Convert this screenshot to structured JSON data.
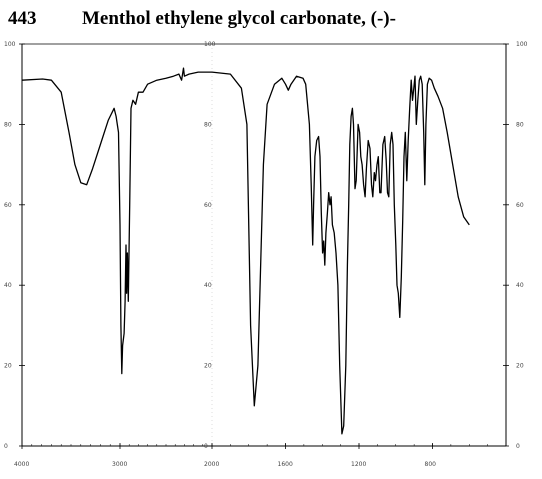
{
  "header": {
    "number": "443",
    "title": "Menthol ethylene glycol carbonate, (-)-"
  },
  "chart_data": {
    "type": "line",
    "title": "Menthol ethylene glycol carbonate, (-)-",
    "xlabel": "",
    "ylabel": "",
    "xlim": [
      4000,
      400
    ],
    "ylim": [
      0,
      100
    ],
    "x_ticks": [
      "4000",
      "3000",
      "2000",
      "1600",
      "1200",
      "800"
    ],
    "y_ticks_left": [
      "100",
      "80",
      "60",
      "40",
      "20",
      "0"
    ],
    "y_ticks_right": [
      "100",
      "80",
      "60",
      "40",
      "20",
      "0"
    ],
    "y_ticks_mid": [
      "100",
      "80",
      "60",
      "40",
      "20",
      "0"
    ],
    "grid": false,
    "series": [
      {
        "name": "",
        "points": [
          [
            4000,
            91
          ],
          [
            3790,
            91.3
          ],
          [
            3700,
            91
          ],
          [
            3600,
            88
          ],
          [
            3520,
            78
          ],
          [
            3460,
            70
          ],
          [
            3400,
            65.5
          ],
          [
            3340,
            65
          ],
          [
            3280,
            69
          ],
          [
            3200,
            75
          ],
          [
            3120,
            81
          ],
          [
            3060,
            84
          ],
          [
            3040,
            82
          ],
          [
            3015,
            78
          ],
          [
            3000,
            55
          ],
          [
            2990,
            30
          ],
          [
            2980,
            18
          ],
          [
            2972,
            25
          ],
          [
            2955,
            28
          ],
          [
            2945,
            36
          ],
          [
            2935,
            50
          ],
          [
            2928,
            38
          ],
          [
            2920,
            48
          ],
          [
            2910,
            36
          ],
          [
            2895,
            60
          ],
          [
            2880,
            84
          ],
          [
            2860,
            86
          ],
          [
            2830,
            85
          ],
          [
            2800,
            88
          ],
          [
            2750,
            88
          ],
          [
            2700,
            90
          ],
          [
            2600,
            91
          ],
          [
            2500,
            91.5
          ],
          [
            2420,
            92
          ],
          [
            2360,
            92.5
          ],
          [
            2330,
            91
          ],
          [
            2310,
            94
          ],
          [
            2300,
            92
          ],
          [
            2250,
            92.5
          ],
          [
            2150,
            93
          ],
          [
            2050,
            93
          ],
          [
            2000,
            93
          ],
          [
            1900,
            92.5
          ],
          [
            1840,
            89
          ],
          [
            1810,
            80
          ],
          [
            1790,
            30
          ],
          [
            1770,
            10
          ],
          [
            1750,
            20
          ],
          [
            1720,
            70
          ],
          [
            1700,
            85
          ],
          [
            1660,
            90
          ],
          [
            1620,
            91.5
          ],
          [
            1600,
            90
          ],
          [
            1585,
            88.5
          ],
          [
            1570,
            90
          ],
          [
            1540,
            92
          ],
          [
            1505,
            91.5
          ],
          [
            1490,
            90
          ],
          [
            1470,
            80
          ],
          [
            1460,
            65
          ],
          [
            1452,
            50
          ],
          [
            1447,
            60
          ],
          [
            1440,
            72
          ],
          [
            1430,
            76
          ],
          [
            1420,
            77
          ],
          [
            1412,
            72
          ],
          [
            1405,
            58
          ],
          [
            1398,
            48
          ],
          [
            1392,
            51
          ],
          [
            1386,
            45
          ],
          [
            1380,
            53
          ],
          [
            1372,
            58
          ],
          [
            1365,
            63
          ],
          [
            1358,
            60
          ],
          [
            1352,
            62
          ],
          [
            1345,
            55
          ],
          [
            1335,
            53
          ],
          [
            1325,
            48
          ],
          [
            1315,
            40
          ],
          [
            1305,
            20
          ],
          [
            1293,
            3
          ],
          [
            1283,
            5
          ],
          [
            1272,
            20
          ],
          [
            1263,
            45
          ],
          [
            1256,
            60
          ],
          [
            1250,
            75
          ],
          [
            1243,
            82
          ],
          [
            1236,
            84
          ],
          [
            1230,
            80
          ],
          [
            1222,
            64
          ],
          [
            1215,
            66
          ],
          [
            1205,
            80
          ],
          [
            1197,
            78
          ],
          [
            1190,
            72
          ],
          [
            1183,
            70
          ],
          [
            1175,
            65
          ],
          [
            1167,
            62
          ],
          [
            1160,
            69
          ],
          [
            1150,
            76
          ],
          [
            1140,
            74
          ],
          [
            1132,
            65
          ],
          [
            1125,
            62
          ],
          [
            1117,
            68
          ],
          [
            1110,
            66
          ],
          [
            1102,
            70
          ],
          [
            1095,
            72
          ],
          [
            1087,
            63
          ],
          [
            1080,
            63
          ],
          [
            1070,
            75
          ],
          [
            1060,
            77
          ],
          [
            1052,
            71
          ],
          [
            1045,
            63
          ],
          [
            1038,
            62
          ],
          [
            1030,
            75
          ],
          [
            1022,
            78
          ],
          [
            1015,
            75
          ],
          [
            1008,
            60
          ],
          [
            1000,
            50
          ],
          [
            993,
            40
          ],
          [
            986,
            38
          ],
          [
            978,
            32
          ],
          [
            970,
            42
          ],
          [
            962,
            56
          ],
          [
            955,
            72
          ],
          [
            948,
            78
          ],
          [
            940,
            66
          ],
          [
            932,
            76
          ],
          [
            924,
            84
          ],
          [
            916,
            91
          ],
          [
            909,
            86
          ],
          [
            902,
            89
          ],
          [
            895,
            92
          ],
          [
            888,
            80
          ],
          [
            880,
            86
          ],
          [
            872,
            91
          ],
          [
            864,
            92
          ],
          [
            856,
            90
          ],
          [
            848,
            78
          ],
          [
            842,
            65
          ],
          [
            836,
            80
          ],
          [
            828,
            90
          ],
          [
            818,
            91.5
          ],
          [
            805,
            91
          ],
          [
            790,
            89
          ],
          [
            770,
            87
          ],
          [
            745,
            84
          ],
          [
            720,
            78
          ],
          [
            690,
            70
          ],
          [
            660,
            62
          ],
          [
            630,
            57
          ],
          [
            600,
            55
          ]
        ]
      }
    ]
  }
}
